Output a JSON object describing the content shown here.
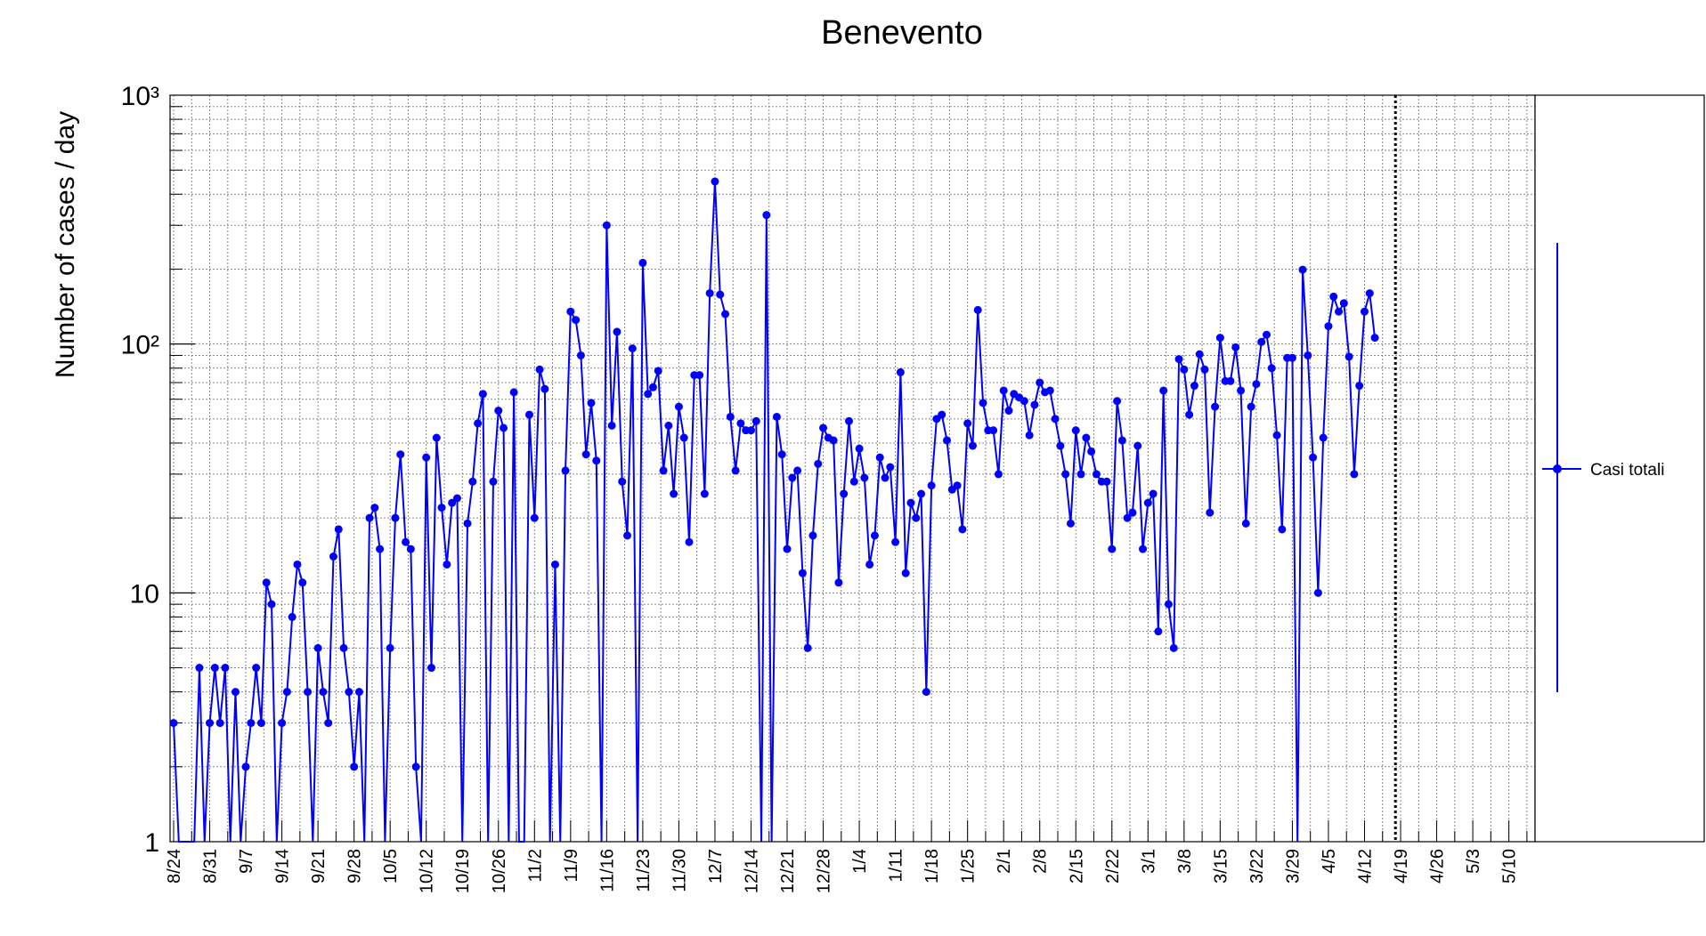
{
  "chart_data": {
    "type": "line",
    "title": "Benevento",
    "ylabel": "Number of cases / day",
    "xlabel": "",
    "yscale": "log",
    "ylim": [
      1,
      1000
    ],
    "y_tick_labels": [
      "1",
      "10",
      "10²",
      "10³"
    ],
    "x_tick_labels": [
      "8/24",
      "8/31",
      "9/7",
      "9/14",
      "9/21",
      "9/28",
      "10/5",
      "10/12",
      "10/19",
      "10/26",
      "11/2",
      "11/9",
      "11/16",
      "11/23",
      "11/30",
      "12/7",
      "12/14",
      "12/21",
      "12/28",
      "1/4",
      "1/11",
      "1/18",
      "1/25",
      "2/1",
      "2/8",
      "2/15",
      "2/22",
      "3/1",
      "3/8",
      "3/15",
      "3/22",
      "3/29",
      "4/5",
      "4/12",
      "4/19",
      "4/26",
      "5/3",
      "5/10"
    ],
    "grid": true,
    "legend": {
      "position": "right",
      "entries": [
        "Casi totali"
      ]
    },
    "colors": {
      "series": "#0000ff",
      "marker_line": "#000000"
    },
    "marker_day_index": 237,
    "series": [
      {
        "name": "Casi totali",
        "values": [
          3,
          0,
          0,
          0,
          0,
          5,
          0,
          3,
          5,
          3,
          5,
          0,
          4,
          0,
          2,
          3,
          5,
          3,
          11,
          9,
          0,
          3,
          4,
          8,
          13,
          11,
          4,
          0,
          6,
          4,
          3,
          14,
          18,
          6,
          4,
          2,
          4,
          0,
          20,
          22,
          15,
          0,
          6,
          20,
          36,
          16,
          15,
          2,
          0,
          35,
          5,
          42,
          22,
          13,
          23,
          24,
          0,
          19,
          28,
          48,
          63,
          0,
          28,
          54,
          46,
          0,
          64,
          0,
          0,
          52,
          20,
          79,
          66,
          0,
          13,
          0,
          31,
          135,
          125,
          90,
          36,
          58,
          34,
          0,
          300,
          47,
          112,
          28,
          17,
          96,
          0,
          212,
          63,
          67,
          78,
          31,
          47,
          25,
          56,
          42,
          16,
          75,
          75,
          25,
          160,
          450,
          158,
          132,
          51,
          31,
          48,
          45,
          45,
          49,
          0,
          330,
          0,
          51,
          36,
          15,
          29,
          31,
          12,
          6,
          17,
          33,
          46,
          42,
          41,
          11,
          25,
          49,
          28,
          38,
          29,
          13,
          17,
          35,
          29,
          32,
          16,
          77,
          12,
          23,
          20,
          25,
          4,
          27,
          50,
          52,
          41,
          26,
          27,
          18,
          48,
          39,
          137,
          58,
          45,
          45,
          30,
          65,
          54,
          63,
          61,
          59,
          43,
          57,
          70,
          64,
          65,
          50,
          39,
          30,
          19,
          45,
          30,
          42,
          37,
          30,
          28,
          28,
          15,
          59,
          41,
          20,
          21,
          39,
          15,
          23,
          25,
          7,
          65,
          9,
          6,
          87,
          79,
          52,
          68,
          91,
          79,
          21,
          56,
          106,
          71,
          71,
          97,
          65,
          19,
          56,
          69,
          102,
          109,
          80,
          43,
          18,
          88,
          88,
          0,
          199,
          90,
          35,
          10,
          42,
          118,
          155,
          135,
          146,
          89,
          30,
          68,
          135,
          160,
          106
        ]
      }
    ]
  }
}
